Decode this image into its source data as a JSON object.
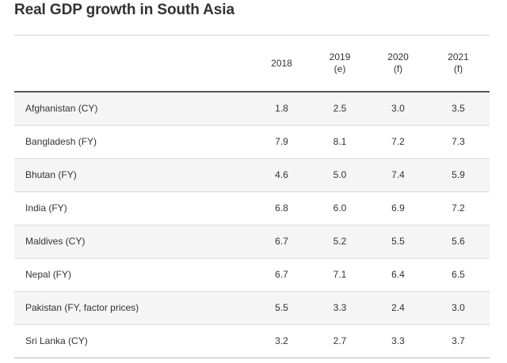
{
  "title": "Real GDP growth in South Asia",
  "columns": [
    {
      "year": "2018",
      "note": ""
    },
    {
      "year": "2019",
      "note": "(e)"
    },
    {
      "year": "2020",
      "note": "(f)"
    },
    {
      "year": "2021",
      "note": "(f)"
    }
  ],
  "rows": [
    {
      "country": "Afghanistan (CY)",
      "values": [
        "1.8",
        "2.5",
        "3.0",
        "3.5"
      ]
    },
    {
      "country": "Bangladesh (FY)",
      "values": [
        "7.9",
        "8.1",
        "7.2",
        "7.3"
      ]
    },
    {
      "country": "Bhutan (FY)",
      "values": [
        "4.6",
        "5.0",
        "7.4",
        "5.9"
      ]
    },
    {
      "country": "India (FY)",
      "values": [
        "6.8",
        "6.0",
        "6.9",
        "7.2"
      ]
    },
    {
      "country": "Maldives (CY)",
      "values": [
        "6.7",
        "5.2",
        "5.5",
        "5.6"
      ]
    },
    {
      "country": "Nepal (FY)",
      "values": [
        "6.7",
        "7.1",
        "6.4",
        "6.5"
      ]
    },
    {
      "country": "Pakistan (FY, factor prices)",
      "values": [
        "5.5",
        "3.3",
        "2.4",
        "3.0"
      ]
    },
    {
      "country": "Sri Lanka (CY)",
      "values": [
        "3.2",
        "2.7",
        "3.3",
        "3.7"
      ]
    }
  ]
}
